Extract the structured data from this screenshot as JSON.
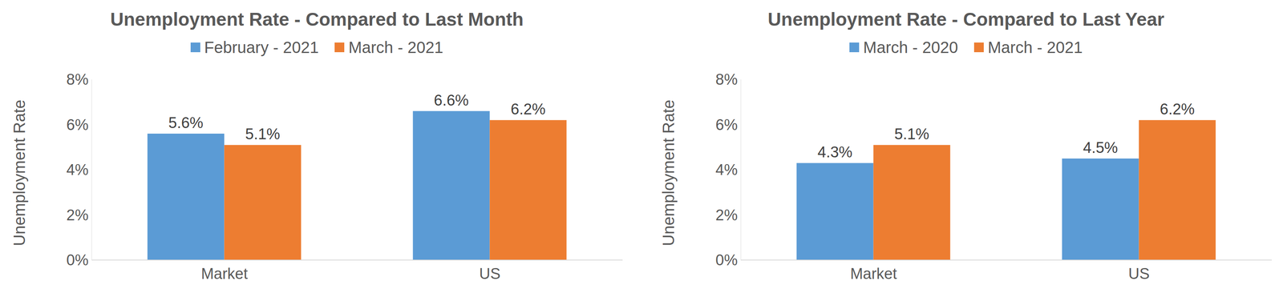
{
  "chart_data": [
    {
      "type": "bar",
      "title": "Unemployment Rate - Compared to Last Month",
      "y_label": "Unemployment Rate",
      "categories": [
        "Market",
        "US"
      ],
      "series": [
        {
          "name": "February - 2021",
          "color": "#5b9bd5",
          "values": [
            5.6,
            6.6
          ],
          "value_labels": [
            "5.6%",
            "6.6%"
          ]
        },
        {
          "name": "March - 2021",
          "color": "#ed7d31",
          "values": [
            5.1,
            6.2
          ],
          "value_labels": [
            "5.1%",
            "6.2%"
          ]
        }
      ],
      "ylim": [
        0,
        8
      ],
      "yticks": [
        {
          "value": 0,
          "label": "0%"
        },
        {
          "value": 2,
          "label": "2%"
        },
        {
          "value": 4,
          "label": "4%"
        },
        {
          "value": 6,
          "label": "6%"
        },
        {
          "value": 8,
          "label": "8%"
        }
      ],
      "grid": false,
      "legend": "top",
      "data_labels": true
    },
    {
      "type": "bar",
      "title": "Unemployment Rate - Compared to Last Year",
      "y_label": "Unemployment Rate",
      "categories": [
        "Market",
        "US"
      ],
      "series": [
        {
          "name": "March - 2020",
          "color": "#5b9bd5",
          "values": [
            4.3,
            4.5
          ],
          "value_labels": [
            "4.3%",
            "4.5%"
          ]
        },
        {
          "name": "March - 2021",
          "color": "#ed7d31",
          "values": [
            5.1,
            6.2
          ],
          "value_labels": [
            "5.1%",
            "6.2%"
          ]
        }
      ],
      "ylim": [
        0,
        8
      ],
      "yticks": [
        {
          "value": 0,
          "label": "0%"
        },
        {
          "value": 2,
          "label": "2%"
        },
        {
          "value": 4,
          "label": "4%"
        },
        {
          "value": 6,
          "label": "6%"
        },
        {
          "value": 8,
          "label": "8%"
        }
      ],
      "grid": false,
      "legend": "top",
      "data_labels": true
    }
  ]
}
